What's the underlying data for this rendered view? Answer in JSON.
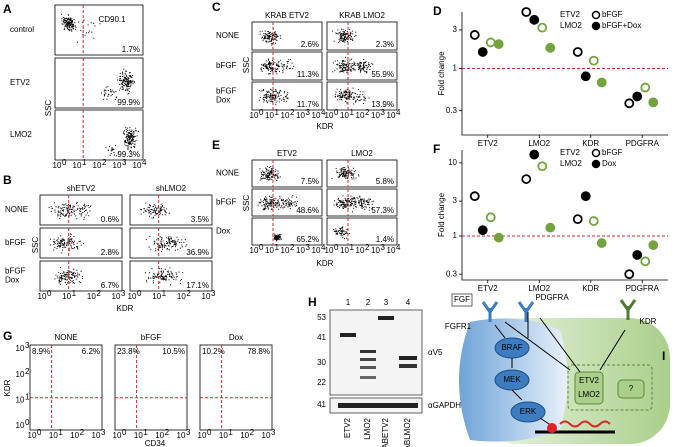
{
  "panels": {
    "A": {
      "label": "A",
      "rows": [
        [
          "control"
        ],
        [
          "ETV2"
        ],
        [
          "LMO2"
        ]
      ],
      "percents": [
        [
          "1.7%"
        ],
        [
          "99.9%"
        ],
        [
          "99.3%"
        ]
      ],
      "x_title": "CD90.1",
      "y_title": "SSC",
      "tick_base": "10",
      "x_ticks": [
        "0",
        "1",
        "2",
        "3",
        "4"
      ]
    },
    "B": {
      "label": "B",
      "columns": [
        "shETV2",
        "shLMO2"
      ],
      "rows": [
        [
          "NONE"
        ],
        [
          "bFGF"
        ],
        [
          "bFGF",
          "Dox"
        ]
      ],
      "percents": [
        [
          "0.6%",
          "3.5%"
        ],
        [
          "2.8%",
          "36.9%"
        ],
        [
          "6.7%",
          "17.1%"
        ]
      ],
      "x_title": "KDR",
      "y_title": "SSC",
      "tick_base": "10",
      "x_ticks": [
        "0",
        "1",
        "2",
        "3"
      ]
    },
    "C": {
      "label": "C",
      "columns": [
        "KRAB ETV2",
        "KRAB LMO2"
      ],
      "rows": [
        [
          "NONE"
        ],
        [
          "bFGF"
        ],
        [
          "bFGF",
          "Dox"
        ]
      ],
      "percents": [
        [
          "2.6%",
          "2.3%"
        ],
        [
          "11.3%",
          "55.9%"
        ],
        [
          "11.7%",
          "13.9%"
        ]
      ],
      "x_title": "KDR",
      "y_title": "SSC",
      "tick_base": "10",
      "x_ticks": [
        "0",
        "1",
        "2",
        "3",
        "4"
      ]
    },
    "E": {
      "label": "E",
      "columns": [
        "ETV2",
        "LMO2"
      ],
      "rows": [
        [
          "NONE"
        ],
        [
          "bFGF"
        ],
        [
          "Dox"
        ]
      ],
      "percents": [
        [
          "7.5%",
          "5.8%"
        ],
        [
          "48.6%",
          "57.3%"
        ],
        [
          "65.2%",
          "1.4%"
        ]
      ],
      "x_title": "KDR",
      "y_title": "SSC",
      "tick_base": "10",
      "x_ticks": [
        "0",
        "1",
        "2",
        "3",
        "4"
      ]
    },
    "G": {
      "label": "G",
      "columns": [
        "NONE",
        "bFGF",
        "Dox"
      ],
      "percents": [
        [
          "8.9%",
          "6.2%"
        ],
        [
          "23.8%",
          "10.5%"
        ],
        [
          "10.2%",
          "78.8%"
        ]
      ],
      "x_title": "CD34",
      "y_title": "KDR",
      "tick_base": "10",
      "x_ticks": [
        "0",
        "1",
        "2",
        "3"
      ],
      "y_ticks": [
        "0",
        "1",
        "2",
        "3"
      ]
    },
    "H": {
      "label": "H",
      "lane_numbers": [
        "1",
        "2",
        "3",
        "4"
      ],
      "lanes": [
        "ETV2",
        "LMO2",
        "KRABETV2",
        "KRABLMO2"
      ],
      "markers": [
        "53",
        "41",
        "30",
        "22",
        "41"
      ],
      "antibodies": [
        "αV5",
        "αGAPDH"
      ]
    },
    "I": {
      "label": "I",
      "nodes": {
        "fgf": "FGF",
        "fgfr1": "FGFR1",
        "pdgfra": "PDGFRA",
        "kdr": "KDR",
        "braf": "BRAF",
        "mek": "MEK",
        "erk": "ERK",
        "etv2": "ETV2",
        "lmo2": "LMO2",
        "unknown": "?"
      }
    }
  },
  "chart_data": [
    {
      "type": "dot",
      "label": "D",
      "y_title": "Fold change",
      "log_y": true,
      "ylim": [
        0.15,
        5
      ],
      "yticks": [
        3,
        1,
        0.3
      ],
      "reference_line": 1,
      "categories": [
        "ETV2",
        "LMO2",
        "KDR",
        "PDGFRA"
      ],
      "legend": {
        "colors": [
          {
            "name": "ETV2",
            "color": "#000000"
          },
          {
            "name": "LMO2",
            "color": "#72a33f"
          }
        ],
        "fills": [
          {
            "name": "bFGF",
            "filled": false
          },
          {
            "name": "bFGF+Dox",
            "filled": true
          }
        ]
      },
      "series": [
        {
          "color": "#000000",
          "filled": false,
          "values": [
            2.6,
            5.0,
            1.6,
            0.37
          ]
        },
        {
          "color": "#000000",
          "filled": true,
          "values": [
            1.6,
            4.0,
            0.8,
            0.45
          ]
        },
        {
          "color": "#72a33f",
          "filled": false,
          "values": [
            2.1,
            3.2,
            1.25,
            0.58
          ]
        },
        {
          "color": "#72a33f",
          "filled": true,
          "values": [
            2.0,
            1.8,
            0.67,
            0.38
          ]
        }
      ]
    },
    {
      "type": "dot",
      "label": "F",
      "y_title": "Fold change",
      "log_y": true,
      "ylim": [
        0.25,
        15
      ],
      "yticks": [
        10,
        3,
        1,
        0.3
      ],
      "reference_line": 1,
      "categories": [
        "ETV2",
        "LMO2",
        "KDR",
        "PDGFRA"
      ],
      "legend": {
        "colors": [
          {
            "name": "ETV2",
            "color": "#000000"
          },
          {
            "name": "LMO2",
            "color": "#72a33f"
          }
        ],
        "fills": [
          {
            "name": "bFGF",
            "filled": false
          },
          {
            "name": "Dox",
            "filled": true
          }
        ]
      },
      "series": [
        {
          "color": "#000000",
          "filled": false,
          "values": [
            3.5,
            6,
            1.7,
            0.3
          ]
        },
        {
          "color": "#000000",
          "filled": true,
          "values": [
            1.2,
            13,
            3.5,
            0.55
          ]
        },
        {
          "color": "#72a33f",
          "filled": false,
          "values": [
            1.8,
            9,
            1.6,
            0.45
          ]
        },
        {
          "color": "#72a33f",
          "filled": true,
          "values": [
            0.95,
            1.3,
            0.8,
            0.75
          ]
        }
      ]
    }
  ]
}
